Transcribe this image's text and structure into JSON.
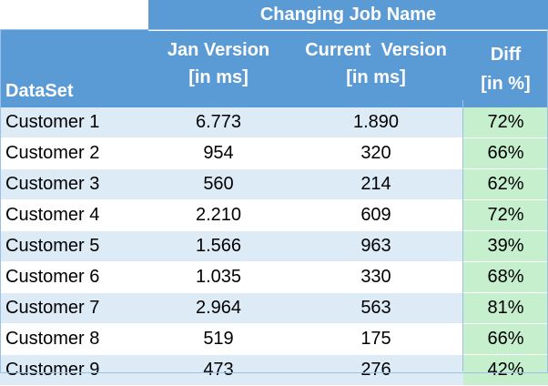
{
  "chart_data": {
    "type": "table",
    "group_header": "Changing Job Name",
    "columns": {
      "dataset": "DataSet",
      "jan_version": [
        "Jan Version",
        "[in ms]"
      ],
      "current_version": [
        "Current  Version",
        "[in ms]"
      ],
      "diff": [
        "Diff",
        "[in %]"
      ]
    },
    "rows": [
      {
        "dataset": "Customer 1",
        "jan": "6.773",
        "current": "1.890",
        "diff": "72%"
      },
      {
        "dataset": "Customer 2",
        "jan": "954",
        "current": "320",
        "diff": "66%"
      },
      {
        "dataset": "Customer 3",
        "jan": "560",
        "current": "214",
        "diff": "62%"
      },
      {
        "dataset": "Customer 4",
        "jan": "2.210",
        "current": "609",
        "diff": "72%"
      },
      {
        "dataset": "Customer 5",
        "jan": "1.566",
        "current": "963",
        "diff": "39%"
      },
      {
        "dataset": "Customer 6",
        "jan": "1.035",
        "current": "330",
        "diff": "68%"
      },
      {
        "dataset": "Customer 7",
        "jan": "2.964",
        "current": "563",
        "diff": "81%"
      },
      {
        "dataset": "Customer 8",
        "jan": "519",
        "current": "175",
        "diff": "66%"
      },
      {
        "dataset": "Customer 9",
        "jan": "473",
        "current": "276",
        "diff": "42%"
      }
    ],
    "colors": {
      "header_fill": "#5b9bd5",
      "header_text": "#ffffff",
      "band_fill": "#ddebf7",
      "diff_fill": "#c6efce"
    }
  }
}
